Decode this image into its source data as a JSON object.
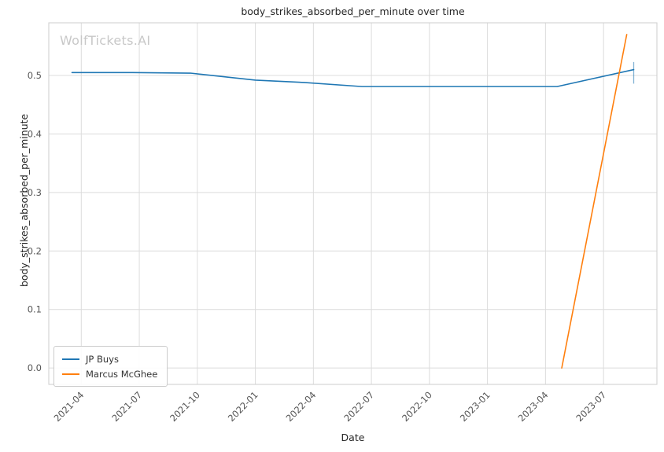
{
  "chart_data": {
    "type": "line",
    "title": "body_strikes_absorbed_per_minute over time",
    "xlabel": "Date",
    "ylabel": "body_strikes_absorbed_per_minute",
    "watermark": "WolfTickets.AI",
    "grid": true,
    "legend_position": "lower left",
    "xlim": [
      2021.11,
      2023.73
    ],
    "ylim": [
      -0.028,
      0.59
    ],
    "x_ticks": [
      {
        "label": "2021-04",
        "value": 2021.25
      },
      {
        "label": "2021-07",
        "value": 2021.5
      },
      {
        "label": "2021-10",
        "value": 2021.75
      },
      {
        "label": "2022-01",
        "value": 2022.0
      },
      {
        "label": "2022-04",
        "value": 2022.25
      },
      {
        "label": "2022-07",
        "value": 2022.5
      },
      {
        "label": "2022-10",
        "value": 2022.75
      },
      {
        "label": "2023-01",
        "value": 2023.0
      },
      {
        "label": "2023-04",
        "value": 2023.25
      },
      {
        "label": "2023-07",
        "value": 2023.5
      }
    ],
    "y_ticks": [
      {
        "label": "0.0",
        "value": 0.0
      },
      {
        "label": "0.1",
        "value": 0.1
      },
      {
        "label": "0.2",
        "value": 0.2
      },
      {
        "label": "0.3",
        "value": 0.3
      },
      {
        "label": "0.4",
        "value": 0.4
      },
      {
        "label": "0.5",
        "value": 0.5
      }
    ],
    "series": [
      {
        "name": "JP Buys",
        "color": "#1f77b4",
        "x": [
          2021.21,
          2021.47,
          2021.72,
          2022.0,
          2022.21,
          2022.46,
          2022.72,
          2023.0,
          2023.3,
          2023.63
        ],
        "y": [
          0.505,
          0.505,
          0.504,
          0.492,
          0.488,
          0.481,
          0.481,
          0.481,
          0.481,
          0.51
        ]
      },
      {
        "name": "Marcus McGhee",
        "color": "#ff7f0e",
        "x": [
          2023.32,
          2023.6
        ],
        "y": [
          0.0,
          0.57
        ]
      }
    ],
    "error_bar": {
      "series": "JP Buys",
      "x": 2023.63,
      "y_low": 0.486,
      "y_high": 0.523,
      "color": "#1f77b4"
    }
  }
}
